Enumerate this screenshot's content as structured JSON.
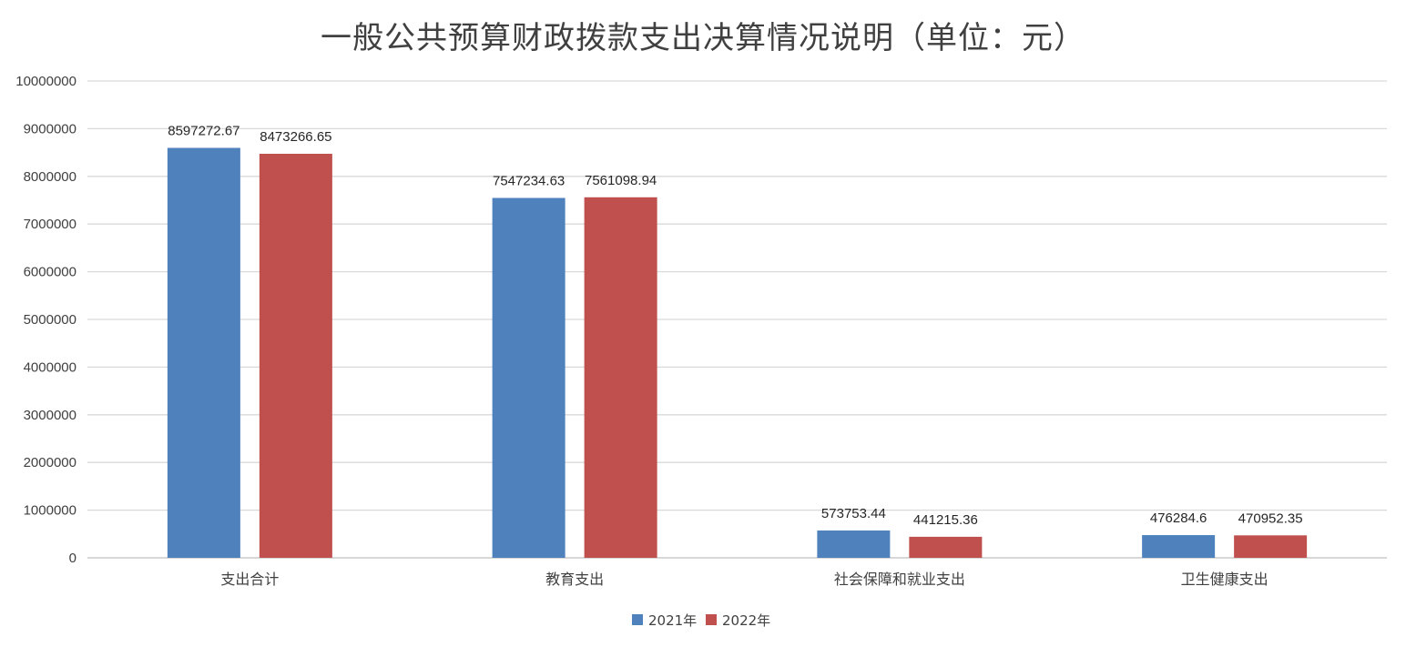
{
  "chart_data": {
    "type": "bar",
    "title": "一般公共预算财政拨款支出决算情况说明（单位：元）",
    "categories": [
      "支出合计",
      "教育支出",
      "社会保障和就业支出",
      "卫生健康支出"
    ],
    "series": [
      {
        "name": "2021年",
        "color": "#4F81BD",
        "values": [
          8597272.67,
          7547234.63,
          573753.44,
          476284.6
        ],
        "labels": [
          "8597272.67",
          "7547234.63",
          "573753.44",
          "476284.6"
        ]
      },
      {
        "name": "2022年",
        "color": "#C0504D",
        "values": [
          8473266.65,
          7561098.94,
          441215.36,
          470952.35
        ],
        "labels": [
          "8473266.65",
          "7561098.94",
          "441215.36",
          "470952.35"
        ]
      }
    ],
    "ylim": [
      0,
      10000000
    ],
    "yticks": [
      "0",
      "1000000",
      "2000000",
      "3000000",
      "4000000",
      "5000000",
      "6000000",
      "7000000",
      "8000000",
      "9000000",
      "10000000"
    ],
    "grid": true,
    "legend_position": "bottom"
  }
}
